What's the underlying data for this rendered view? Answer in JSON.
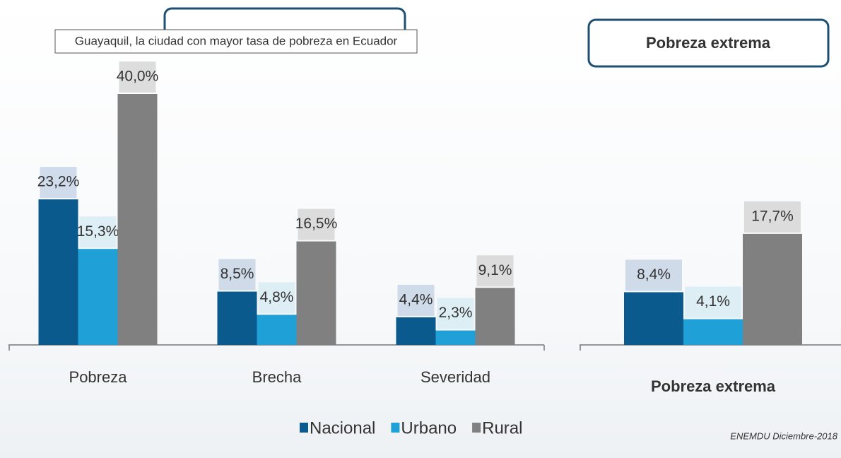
{
  "tooltip": "Guayaquil, la ciudad con mayor tasa de pobreza en Ecuador",
  "source": "ENEMDU Diciembre-2018",
  "chart_data": [
    {
      "type": "bar",
      "categories": [
        "Pobreza",
        "Brecha",
        "Severidad"
      ],
      "ylim": [
        0,
        40
      ],
      "series": [
        {
          "name": "Nacional",
          "color": "#0b5a8e",
          "values": [
            23.2,
            8.5,
            4.4
          ],
          "value_labels": [
            "23,2%",
            "8,5%",
            "4,4%"
          ]
        },
        {
          "name": "Urbano",
          "color": "#1fa0d6",
          "values": [
            15.3,
            4.8,
            2.3
          ],
          "value_labels": [
            "15,3%",
            "4,8%",
            "2,3%"
          ]
        },
        {
          "name": "Rural",
          "color": "#808080",
          "values": [
            40.0,
            16.5,
            9.1
          ],
          "value_labels": [
            "40,0%",
            "16,5%",
            "9,1%"
          ]
        }
      ]
    },
    {
      "type": "bar",
      "title": "Pobreza extrema",
      "categories": [
        "Pobreza extrema"
      ],
      "ylim": [
        0,
        40
      ],
      "series": [
        {
          "color": "#0b5a8e",
          "values": [
            8.4
          ],
          "value_labels": [
            "8,4%"
          ]
        },
        {
          "color": "#1fa0d6",
          "values": [
            4.1
          ],
          "value_labels": [
            "4,1%"
          ]
        },
        {
          "color": "#808080",
          "values": [
            17.7
          ],
          "value_labels": [
            "17,7%"
          ]
        }
      ]
    }
  ]
}
